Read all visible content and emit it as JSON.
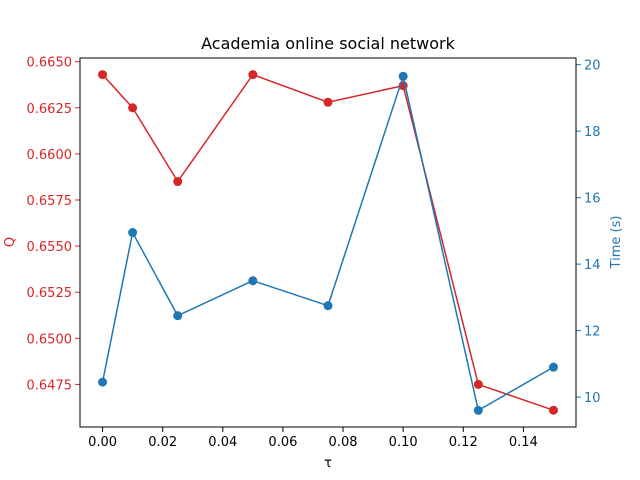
{
  "chart_data": {
    "type": "line",
    "title": "Academia online social network",
    "xlabel": "τ",
    "ylabel_left": "Q",
    "ylabel_right": "Time (s)",
    "x": [
      0.0,
      0.01,
      0.025,
      0.05,
      0.075,
      0.1,
      0.125,
      0.15
    ],
    "xlim": [
      -0.0075,
      0.1575
    ],
    "xticks": [
      "0.00",
      "0.02",
      "0.04",
      "0.06",
      "0.08",
      "0.10",
      "0.12",
      "0.14"
    ],
    "series": [
      {
        "axis": "left",
        "color": "#d62728",
        "values": [
          0.6643,
          0.6625,
          0.6585,
          0.6643,
          0.6628,
          0.6637,
          0.6475,
          0.6461
        ]
      },
      {
        "axis": "right",
        "color": "#1f77b4",
        "values": [
          10.45,
          14.95,
          12.45,
          13.5,
          12.75,
          19.65,
          9.6,
          10.9
        ]
      }
    ],
    "ylim_left": [
      0.64519,
      0.6652
    ],
    "ylim_right": [
      9.1,
      20.2
    ],
    "yticks_left": [
      "0.6475",
      "0.6500",
      "0.6525",
      "0.6550",
      "0.6575",
      "0.6600",
      "0.6625",
      "0.6650"
    ],
    "yticks_right": [
      "10",
      "12",
      "14",
      "16",
      "18",
      "20"
    ],
    "grid": false,
    "legend": "none"
  }
}
